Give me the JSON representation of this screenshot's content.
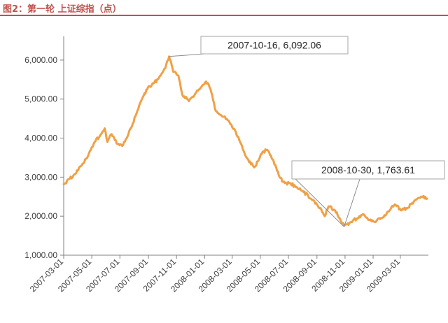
{
  "header": {
    "title": "图2：第一轮 上证综指（点）",
    "accent_color": "#c0504d"
  },
  "chart_data": {
    "type": "line",
    "title": "",
    "xlabel": "",
    "ylabel": "",
    "ylim": [
      1000,
      6500
    ],
    "y_ticks": [
      "1,000.00",
      "2,000.00",
      "3,000.00",
      "4,000.00",
      "5,000.00",
      "6,000.00"
    ],
    "x_ticks": [
      "2007-03-01",
      "2007-05-01",
      "2007-07-01",
      "2007-09-01",
      "2007-11-01",
      "2008-01-01",
      "2008-03-01",
      "2008-05-01",
      "2008-07-01",
      "2008-09-01",
      "2008-11-01",
      "2009-01-01",
      "2009-03-01"
    ],
    "xlim": [
      "2007-03-01",
      "2009-05-01"
    ],
    "grid": false,
    "legend": "none",
    "series_color": "#f0a046",
    "series": [
      {
        "x": [
          "2007-03-01",
          "2007-03-12",
          "2007-03-26",
          "2007-04-09",
          "2007-04-23",
          "2007-05-07",
          "2007-05-21",
          "2007-05-29",
          "2007-06-04",
          "2007-06-13",
          "2007-06-20",
          "2007-06-28",
          "2007-07-06",
          "2007-07-16",
          "2007-07-27",
          "2007-08-08",
          "2007-08-20",
          "2007-08-31",
          "2007-09-12",
          "2007-09-24",
          "2007-10-08",
          "2007-10-16",
          "2007-10-25",
          "2007-11-05",
          "2007-11-14",
          "2007-11-28",
          "2007-12-10",
          "2007-12-20",
          "2008-01-04",
          "2008-01-14",
          "2008-01-25",
          "2008-02-04",
          "2008-02-22",
          "2008-03-07",
          "2008-03-18",
          "2008-04-01",
          "2008-04-18",
          "2008-04-28",
          "2008-05-06",
          "2008-05-16",
          "2008-05-28",
          "2008-06-12",
          "2008-06-23",
          "2008-07-04",
          "2008-07-18",
          "2008-08-01",
          "2008-08-18",
          "2008-09-01",
          "2008-09-18",
          "2008-09-26",
          "2008-10-10",
          "2008-10-22",
          "2008-10-30",
          "2008-11-14",
          "2008-11-28",
          "2008-12-10",
          "2008-12-23",
          "2009-01-05",
          "2009-01-20",
          "2009-02-06",
          "2009-02-17",
          "2009-03-02",
          "2009-03-16",
          "2009-04-01",
          "2009-04-15",
          "2009-04-28"
        ],
        "values": [
          2820,
          2950,
          3080,
          3300,
          3550,
          3900,
          4100,
          4250,
          3900,
          4100,
          3950,
          3850,
          3800,
          4000,
          4300,
          4700,
          5050,
          5300,
          5400,
          5550,
          5800,
          6092,
          5700,
          5600,
          5100,
          4950,
          5100,
          5250,
          5450,
          5250,
          4700,
          4600,
          4450,
          4200,
          3900,
          3500,
          3250,
          3450,
          3650,
          3700,
          3450,
          3000,
          2850,
          2850,
          2750,
          2650,
          2450,
          2300,
          2000,
          2250,
          2150,
          1900,
          1764,
          1850,
          1950,
          2050,
          1900,
          1850,
          1950,
          2150,
          2300,
          2150,
          2200,
          2400,
          2500,
          2450
        ]
      }
    ],
    "annotations": [
      {
        "text": "2007-10-16, 6,092.06",
        "x": "2007-10-16",
        "y": 6092.06
      },
      {
        "text": "2008-10-30, 1,763.61",
        "x": "2008-10-30",
        "y": 1763.61
      }
    ]
  }
}
